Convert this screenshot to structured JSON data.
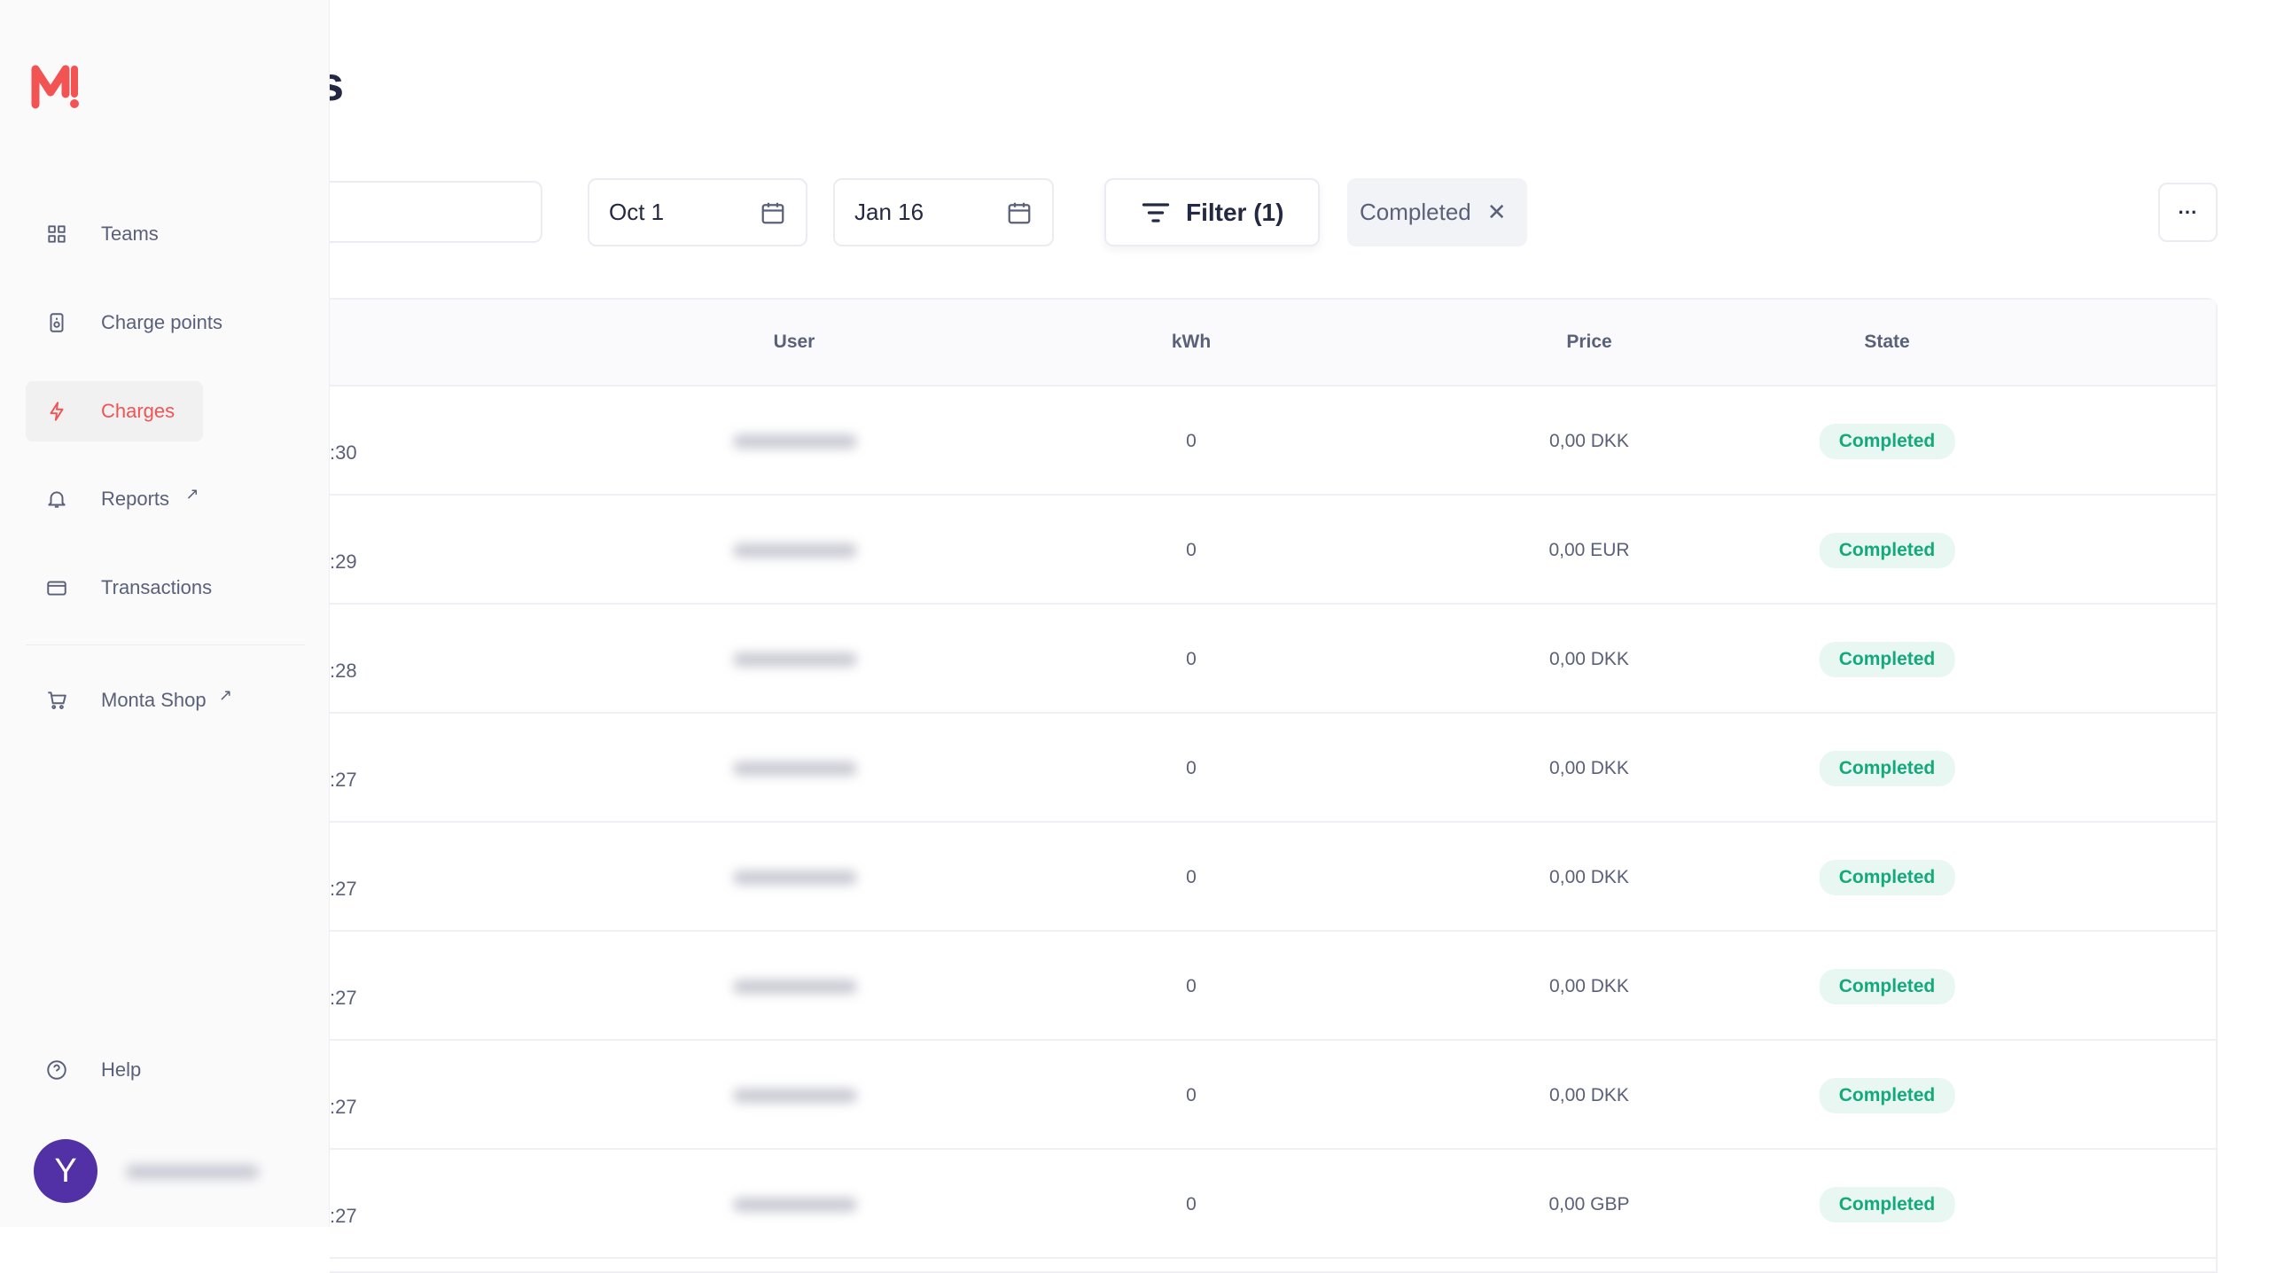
{
  "brand": {
    "logo_text": "M!",
    "color": "#f25353"
  },
  "page": {
    "title_fragment": "s"
  },
  "sidebar": {
    "items": [
      {
        "label": "Teams",
        "icon": "grid-icon"
      },
      {
        "label": "Charge points",
        "icon": "charge-point-icon"
      },
      {
        "label": "Charges",
        "icon": "lightning-icon",
        "active": true
      },
      {
        "label": "Reports",
        "icon": "bell-icon",
        "external": "↗"
      },
      {
        "label": "Transactions",
        "icon": "card-icon"
      },
      {
        "label": "Monta Shop",
        "icon": "cart-icon",
        "external": "↗"
      }
    ],
    "help": "Help",
    "avatar_initial": "Y"
  },
  "toolbar": {
    "search_value": "",
    "date_from": "Oct 1",
    "date_to": "Jan 16",
    "filter_label": "Filter (1)",
    "active_chip": "Completed",
    "more_label": "···"
  },
  "table": {
    "columns": [
      "User",
      "kWh",
      "Price",
      "State"
    ],
    "rows": [
      {
        "time": ":30",
        "kwh": "0",
        "price": "0,00 DKK",
        "state": "Completed"
      },
      {
        "time": ":29",
        "kwh": "0",
        "price": "0,00 EUR",
        "state": "Completed"
      },
      {
        "time": ":28",
        "kwh": "0",
        "price": "0,00 DKK",
        "state": "Completed"
      },
      {
        "time": ":27",
        "kwh": "0",
        "price": "0,00 DKK",
        "state": "Completed"
      },
      {
        "time": ":27",
        "kwh": "0",
        "price": "0,00 DKK",
        "state": "Completed"
      },
      {
        "time": ":27",
        "kwh": "0",
        "price": "0,00 DKK",
        "state": "Completed"
      },
      {
        "time": ":27",
        "kwh": "0",
        "price": "0,00 DKK",
        "state": "Completed"
      },
      {
        "time": ":27",
        "kwh": "0",
        "price": "0,00 GBP",
        "state": "Completed"
      }
    ]
  },
  "colors": {
    "accent": "#f25353",
    "success_text": "#14a97a",
    "success_bg": "#e8f7f1",
    "avatar": "#5230a6"
  }
}
